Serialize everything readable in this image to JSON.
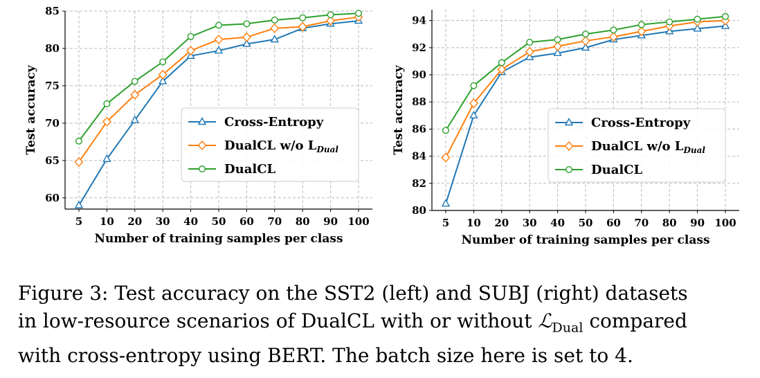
{
  "chart_data": [
    {
      "type": "line",
      "title": "",
      "xlabel": "Number of training samples per class",
      "ylabel": "Test accuracy",
      "categories": [
        "5",
        "10",
        "20",
        "30",
        "40",
        "50",
        "60",
        "70",
        "80",
        "90",
        "100"
      ],
      "ylim": [
        58.5,
        85
      ],
      "yticks": [
        60,
        65,
        70,
        75,
        80,
        85
      ],
      "grid": true,
      "legend_position": "center-right",
      "series": [
        {
          "name": "Cross-Entropy",
          "color": "#1f77b4",
          "marker": "triangle",
          "values": [
            59.0,
            65.2,
            70.4,
            75.6,
            79.0,
            79.7,
            80.6,
            81.2,
            82.7,
            83.3,
            83.7
          ]
        },
        {
          "name": "DualCL w/o L",
          "name_subscript": "Dual",
          "color": "#ff7f0e",
          "marker": "diamond",
          "values": [
            64.8,
            70.2,
            73.8,
            76.5,
            79.7,
            81.2,
            81.5,
            82.7,
            82.9,
            83.7,
            84.2
          ]
        },
        {
          "name": "DualCL",
          "color": "#2ca02c",
          "marker": "circle",
          "values": [
            67.6,
            72.6,
            75.6,
            78.2,
            81.6,
            83.1,
            83.3,
            83.8,
            84.1,
            84.5,
            84.7
          ]
        }
      ]
    },
    {
      "type": "line",
      "title": "",
      "xlabel": "Number of training samples per class",
      "ylabel": "Test accuracy",
      "categories": [
        "5",
        "10",
        "20",
        "30",
        "40",
        "50",
        "60",
        "70",
        "80",
        "90",
        "100"
      ],
      "ylim": [
        80,
        94.8
      ],
      "yticks": [
        80,
        82,
        84,
        86,
        88,
        90,
        92,
        94
      ],
      "grid": true,
      "legend_position": "center-right",
      "series": [
        {
          "name": "Cross-Entropy",
          "color": "#1f77b4",
          "marker": "triangle",
          "values": [
            80.5,
            87.0,
            90.2,
            91.3,
            91.6,
            92.0,
            92.6,
            92.9,
            93.2,
            93.4,
            93.6
          ]
        },
        {
          "name": "DualCL w/o L",
          "name_subscript": "Dual",
          "color": "#ff7f0e",
          "marker": "diamond",
          "values": [
            83.9,
            87.9,
            90.4,
            91.7,
            92.1,
            92.5,
            92.8,
            93.2,
            93.6,
            93.9,
            94.0
          ]
        },
        {
          "name": "DualCL",
          "color": "#2ca02c",
          "marker": "circle",
          "values": [
            85.9,
            89.2,
            90.9,
            92.4,
            92.6,
            93.0,
            93.3,
            93.7,
            93.9,
            94.1,
            94.3
          ]
        }
      ]
    }
  ],
  "caption": {
    "line1": "Figure 3: Test accuracy on the SST2 (left) and SUBJ (right) datasets",
    "line2a": "in low-resource scenarios of DualCL with or without ",
    "line2_symbol": "ℒ",
    "line2_sub": "Dual",
    "line2b": " compared",
    "line3": "with cross-entropy using BERT. The batch size here is set to 4."
  }
}
